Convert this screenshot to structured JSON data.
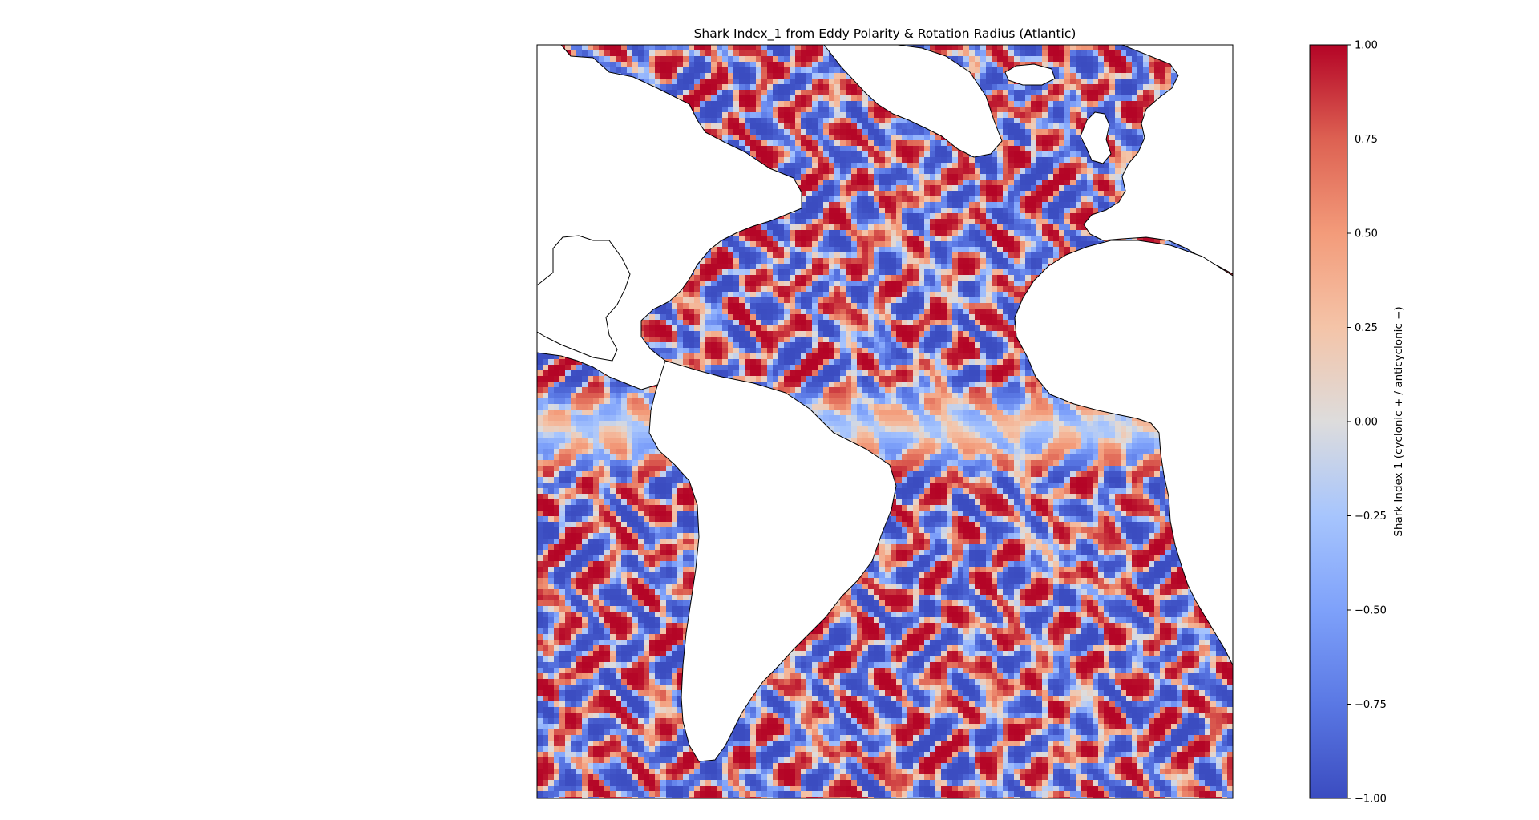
{
  "chart_data": {
    "type": "heatmap",
    "title": "Shark Index_1 from Eddy Polarity & Rotation Radius (Atlantic)",
    "region": "Atlantic",
    "colormap": "coolwarm",
    "colorbar": {
      "label": "Shark Index 1 (cyclonic + / anticyclonic −)",
      "vmin": -1.0,
      "vmax": 1.0,
      "ticks": [
        1.0,
        0.75,
        0.5,
        0.25,
        0.0,
        -0.25,
        -0.5,
        -0.75,
        -1.0
      ],
      "tick_labels": [
        "1.00",
        "0.75",
        "0.50",
        "0.25",
        "0.00",
        "−0.25",
        "−0.50",
        "−0.75",
        "−1.00"
      ],
      "stops": [
        {
          "value": -1.0,
          "color": "#3b4cc0"
        },
        {
          "value": -0.75,
          "color": "#5a78e4"
        },
        {
          "value": -0.5,
          "color": "#7ea1fa"
        },
        {
          "value": -0.25,
          "color": "#a7c5fd"
        },
        {
          "value": 0.0,
          "color": "#dddcdc"
        },
        {
          "value": 0.25,
          "color": "#f4c4a8"
        },
        {
          "value": 0.5,
          "color": "#f39b7a"
        },
        {
          "value": 0.75,
          "color": "#dd6152"
        },
        {
          "value": 1.0,
          "color": "#b40426"
        }
      ]
    },
    "land_color": "#ffffff",
    "coastline_color": "#000000",
    "grid": false,
    "legend": "colorbar at right",
    "description_of_field": "Dense alternating bands of positive (red) and negative (blue) index values covering the Atlantic ocean; a near-zero (grey/white) zonal band along the equator"
  }
}
